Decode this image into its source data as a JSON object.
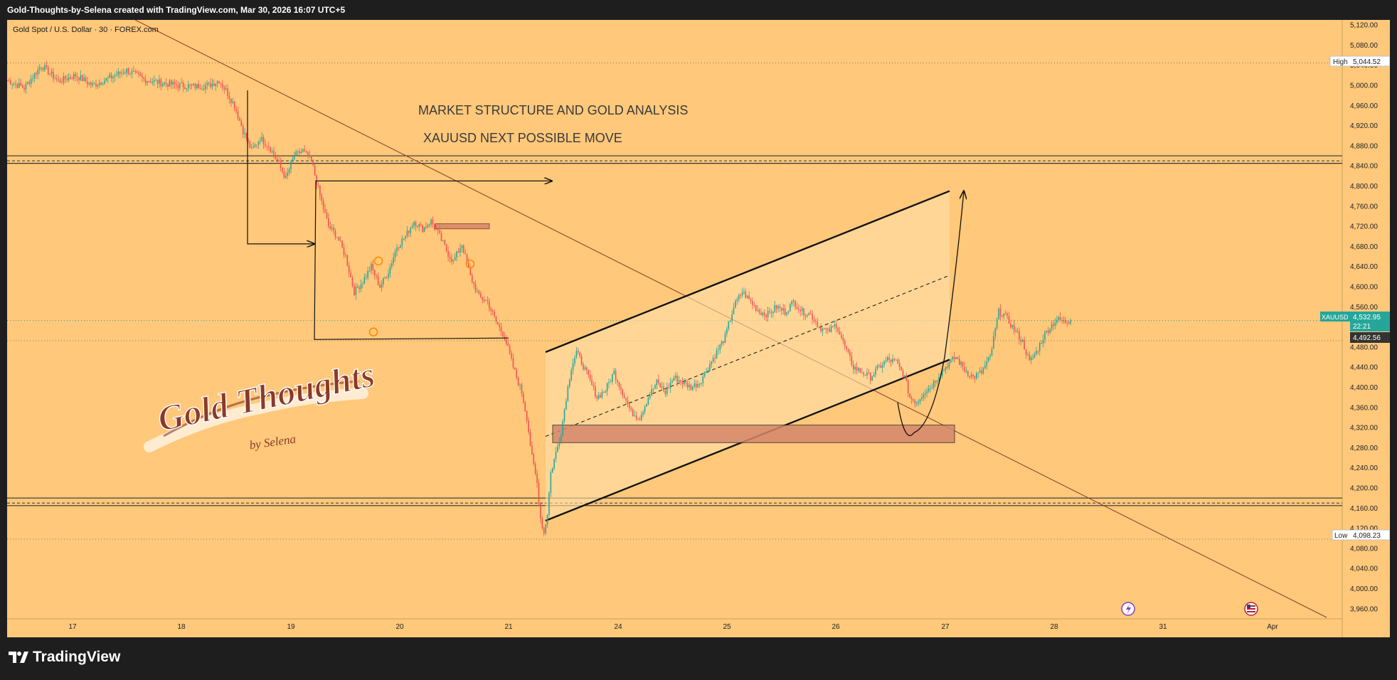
{
  "header": {
    "created_with": "Gold-Thoughts-by-Selena created with TradingView.com, Mar 30, 2026 16:07 UTC+5"
  },
  "symbol": {
    "title": "Gold Spot / U.S. Dollar · 30 · FOREX.com",
    "ticker": "XAUUSD",
    "countdown": "22:21"
  },
  "annotations": {
    "title_line1": "MARKET STRUCTURE AND GOLD ANALYSIS",
    "title_line2": "XAUUSD NEXT POSSIBLE MOVE"
  },
  "watermark": {
    "line1": "Gold Thoughts",
    "line2": "by Selena"
  },
  "price_labels": {
    "high_tag": "High",
    "high_value": "5,044.52",
    "low_tag": "Low",
    "low_value": "4,098.23",
    "last_value": "4,532.95",
    "ref_value": "4,492.56"
  },
  "footer": {
    "brand": "TradingView"
  },
  "colors": {
    "background": "#ffc87a",
    "frame": "#1e1e1e",
    "candle_up": "#26a69a",
    "candle_down": "#ef5350",
    "zone": "#d4876a",
    "channel_fill": "#ffe0a8",
    "trendline": "#8b3a2a",
    "last_price": "#26a69a"
  },
  "chart_data": {
    "type": "candlestick",
    "symbol": "XAUUSD",
    "timeframe": "30",
    "x_ticks": [
      "17",
      "18",
      "19",
      "20",
      "21",
      "24",
      "25",
      "26",
      "27",
      "28",
      "31",
      "Apr"
    ],
    "y_ticks": [
      "5,120.00",
      "5,080.00",
      "5,040.00",
      "5,000.00",
      "4,960.00",
      "4,920.00",
      "4,880.00",
      "4,840.00",
      "4,800.00",
      "4,760.00",
      "4,720.00",
      "4,680.00",
      "4,640.00",
      "4,600.00",
      "4,560.00",
      "4,520.00",
      "4,480.00",
      "4,440.00",
      "4,400.00",
      "4,360.00",
      "4,320.00",
      "4,280.00",
      "4,240.00",
      "4,200.00",
      "4,160.00",
      "4,120.00",
      "4,080.00",
      "4,040.00",
      "4,000.00",
      "3,960.00"
    ],
    "ylim": [
      3940,
      5130
    ],
    "price_path": [
      [
        0,
        5010
      ],
      [
        10,
        4995
      ],
      [
        20,
        5040
      ],
      [
        30,
        5008
      ],
      [
        40,
        5020
      ],
      [
        50,
        5000
      ],
      [
        60,
        5015
      ],
      [
        70,
        5030
      ],
      [
        80,
        5012
      ],
      [
        90,
        5005
      ],
      [
        100,
        5000
      ],
      [
        110,
        4998
      ],
      [
        118,
        5000
      ],
      [
        124,
        5010
      ],
      [
        128,
        4990
      ],
      [
        133,
        4960
      ],
      [
        138,
        4910
      ],
      [
        143,
        4870
      ],
      [
        148,
        4895
      ],
      [
        153,
        4880
      ],
      [
        158,
        4850
      ],
      [
        163,
        4815
      ],
      [
        168,
        4860
      ],
      [
        173,
        4870
      ],
      [
        178,
        4850
      ],
      [
        183,
        4780
      ],
      [
        188,
        4720
      ],
      [
        193,
        4700
      ],
      [
        198,
        4660
      ],
      [
        203,
        4590
      ],
      [
        208,
        4610
      ],
      [
        213,
        4640
      ],
      [
        218,
        4600
      ],
      [
        223,
        4630
      ],
      [
        228,
        4680
      ],
      [
        233,
        4700
      ],
      [
        238,
        4730
      ],
      [
        243,
        4715
      ],
      [
        248,
        4730
      ],
      [
        253,
        4700
      ],
      [
        258,
        4665
      ],
      [
        261,
        4650
      ],
      [
        266,
        4685
      ],
      [
        271,
        4620
      ],
      [
        276,
        4580
      ],
      [
        281,
        4570
      ],
      [
        286,
        4530
      ],
      [
        291,
        4500
      ],
      [
        296,
        4440
      ],
      [
        301,
        4390
      ],
      [
        304,
        4340
      ],
      [
        307,
        4260
      ],
      [
        310,
        4210
      ],
      [
        312,
        4140
      ],
      [
        314,
        4110
      ],
      [
        316,
        4150
      ],
      [
        318,
        4230
      ],
      [
        321,
        4270
      ],
      [
        324,
        4310
      ],
      [
        327,
        4380
      ],
      [
        330,
        4440
      ],
      [
        333,
        4470
      ],
      [
        336,
        4450
      ],
      [
        340,
        4420
      ],
      [
        345,
        4380
      ],
      [
        350,
        4395
      ],
      [
        355,
        4430
      ],
      [
        360,
        4390
      ],
      [
        365,
        4350
      ],
      [
        370,
        4340
      ],
      [
        375,
        4380
      ],
      [
        380,
        4410
      ],
      [
        385,
        4390
      ],
      [
        390,
        4420
      ],
      [
        395,
        4410
      ],
      [
        400,
        4400
      ],
      [
        405,
        4410
      ],
      [
        410,
        4440
      ],
      [
        415,
        4470
      ],
      [
        420,
        4500
      ],
      [
        425,
        4560
      ],
      [
        430,
        4590
      ],
      [
        435,
        4570
      ],
      [
        440,
        4550
      ],
      [
        445,
        4545
      ],
      [
        450,
        4560
      ],
      [
        455,
        4550
      ],
      [
        460,
        4570
      ],
      [
        465,
        4550
      ],
      [
        470,
        4545
      ],
      [
        475,
        4520
      ],
      [
        480,
        4510
      ],
      [
        485,
        4525
      ],
      [
        490,
        4480
      ],
      [
        495,
        4440
      ],
      [
        500,
        4430
      ],
      [
        505,
        4420
      ],
      [
        510,
        4440
      ],
      [
        515,
        4455
      ],
      [
        520,
        4450
      ],
      [
        525,
        4420
      ],
      [
        528,
        4380
      ],
      [
        532,
        4370
      ],
      [
        536,
        4390
      ],
      [
        540,
        4400
      ],
      [
        545,
        4425
      ],
      [
        550,
        4445
      ],
      [
        555,
        4460
      ],
      [
        560,
        4435
      ],
      [
        565,
        4420
      ],
      [
        570,
        4430
      ],
      [
        575,
        4460
      ],
      [
        580,
        4550
      ],
      [
        583,
        4545
      ],
      [
        586,
        4530
      ],
      [
        590,
        4510
      ],
      [
        594,
        4490
      ],
      [
        598,
        4450
      ],
      [
        602,
        4470
      ],
      [
        606,
        4500
      ],
      [
        610,
        4520
      ],
      [
        614,
        4535
      ],
      [
        618,
        4530
      ],
      [
        622,
        4532.95
      ]
    ],
    "high": 5044.52,
    "low": 4098.23,
    "last": 4532.95,
    "horizontal_levels": [
      4860,
      4850,
      4845,
      4180,
      4170,
      4165
    ],
    "supply_zone": [
      4725,
      4715
    ],
    "demand_zone": [
      4325,
      4290
    ],
    "channel": {
      "upper": [
        [
          4470,
          4790
        ]
      ],
      "lower": [
        [
          4135,
          4455
        ]
      ]
    },
    "projection_target": 4790,
    "projection_dip": 4310
  }
}
